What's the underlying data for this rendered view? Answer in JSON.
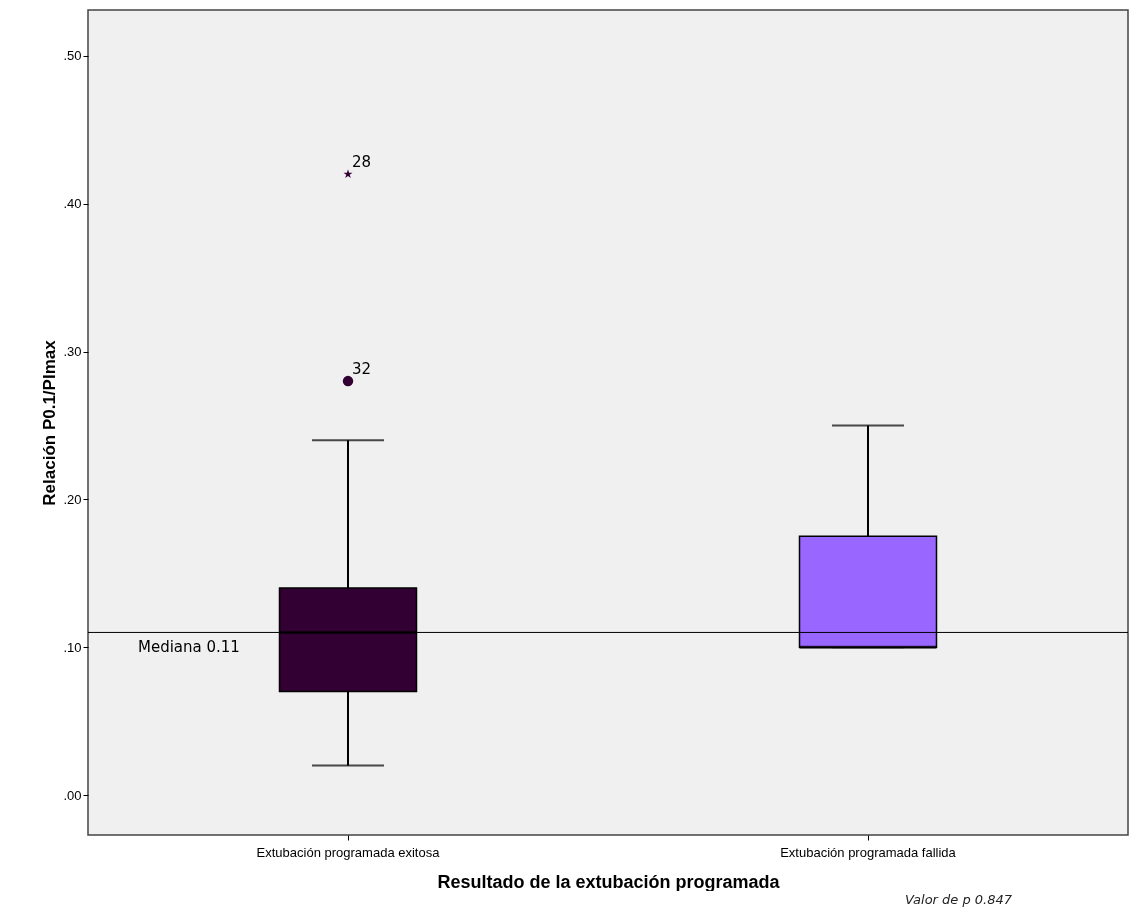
{
  "chart_data": {
    "type": "box",
    "xlabel": "Resultado de la extubación programada",
    "ylabel": "Relación P0.1/PImax",
    "categories": [
      "Extubación programada exitosa",
      "Extubación programada fallida"
    ],
    "colors": [
      "#330033",
      "#9966ff"
    ],
    "boxes": [
      {
        "low": 0.02,
        "q1": 0.07,
        "median": 0.11,
        "q3": 0.14,
        "high": 0.24,
        "outliers": [
          0.42,
          0.28
        ]
      },
      {
        "low": 0.1,
        "q1": 0.1,
        "median": 0.1,
        "q3": 0.175,
        "high": 0.25
      }
    ],
    "ylim": [
      -0.027,
      0.531
    ],
    "yticks": [
      {
        "value": 0,
        "label": ".00"
      },
      {
        "value": 0.1,
        "label": ".10"
      },
      {
        "value": 0.2,
        "label": ".20"
      },
      {
        "value": 0.3,
        "label": ".30"
      },
      {
        "value": 0.4,
        "label": ".40"
      },
      {
        "value": 0.5,
        "label": ".50"
      }
    ],
    "grid": false,
    "legend": false,
    "ref_lines": [
      {
        "axis": "y",
        "value": 0.11,
        "label": "Mediana 0.11"
      }
    ],
    "annotations": [
      "28",
      "32",
      "Valor de p 0.847"
    ]
  }
}
